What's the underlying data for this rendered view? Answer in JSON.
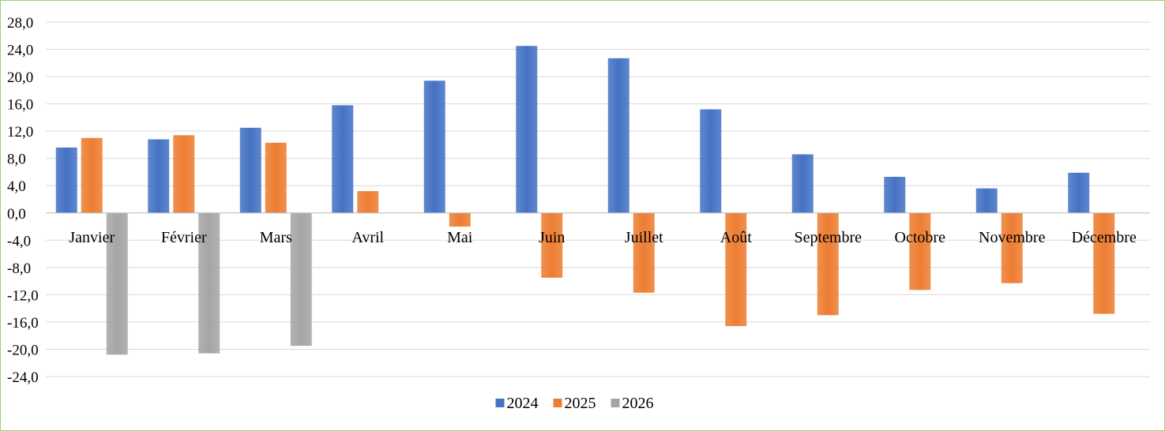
{
  "chart_data": {
    "type": "bar",
    "title": "",
    "xlabel": "",
    "ylabel": "",
    "categories": [
      "Janvier",
      "Février",
      "Mars",
      "Avril",
      "Mai",
      "Juin",
      "Juillet",
      "Août",
      "Septembre",
      "Octobre",
      "Novembre",
      "Décembre"
    ],
    "series": [
      {
        "name": "2024",
        "color": "#4472c4",
        "values": [
          9.6,
          10.8,
          12.5,
          15.8,
          19.4,
          24.5,
          22.7,
          15.2,
          8.6,
          5.3,
          3.6,
          5.9
        ]
      },
      {
        "name": "2025",
        "color": "#ed7d31",
        "values": [
          11.0,
          11.4,
          10.3,
          3.2,
          -2.0,
          -9.5,
          -11.7,
          -16.6,
          -15.0,
          -11.3,
          -10.3,
          -14.8
        ]
      },
      {
        "name": "2026",
        "color": "#a5a5a5",
        "values": [
          -20.8,
          -20.6,
          -19.5,
          null,
          null,
          null,
          null,
          null,
          null,
          null,
          null,
          null
        ]
      }
    ],
    "ylim": [
      -24,
      28
    ],
    "ytick_step": 4,
    "ytick_labels": [
      "28,0",
      "24,0",
      "20,0",
      "16,0",
      "12,0",
      "8,0",
      "4,0",
      "0,0",
      "-4,0",
      "-8,0",
      "-12,0",
      "-16,0",
      "-20,0",
      "-24,0"
    ],
    "grid": true,
    "legend_position": "bottom"
  }
}
